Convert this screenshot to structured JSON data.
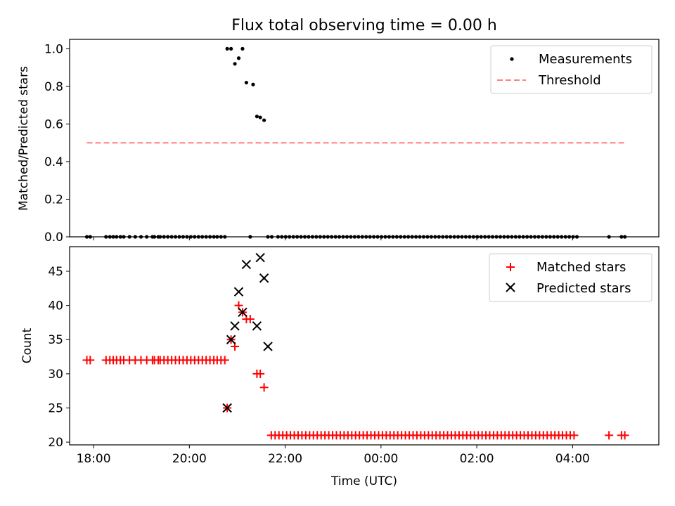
{
  "chart_data": [
    {
      "type": "scatter",
      "title": "Flux total observing time = 0.00 h",
      "xlabel": "",
      "ylabel": "Matched/Predicted stars",
      "xlim": [
        -0.5,
        11.8
      ],
      "ylim": [
        0,
        1.05
      ],
      "yticks": [
        0.0,
        0.2,
        0.4,
        0.6,
        0.8,
        1.0
      ],
      "ytick_labels": [
        "0.0",
        "0.2",
        "0.4",
        "0.6",
        "0.8",
        "1.0"
      ],
      "legend": {
        "location": "top-right",
        "entries": [
          "Measurements",
          "Threshold"
        ]
      },
      "series": [
        {
          "name": "Measurements",
          "marker": "dot",
          "color": "#000000",
          "x": [
            -0.14,
            -0.07,
            0.26,
            0.34,
            0.41,
            0.48,
            0.56,
            0.63,
            0.75,
            0.87,
            0.99,
            1.11,
            1.23,
            1.27,
            1.35,
            1.39,
            1.47,
            1.55,
            1.63,
            1.71,
            1.79,
            1.87,
            1.95,
            2.03,
            2.11,
            2.19,
            2.27,
            2.35,
            2.43,
            2.51,
            2.58,
            2.66,
            2.74,
            2.79,
            2.87,
            2.95,
            3.03,
            3.11,
            3.19,
            3.27,
            3.33,
            3.41,
            3.48,
            3.56,
            3.64,
            3.72,
            3.85,
            3.93,
            4.01,
            4.09,
            4.17,
            4.25,
            4.33,
            4.41,
            4.49,
            4.57,
            4.65,
            4.73,
            4.81,
            4.89,
            4.97,
            5.05,
            5.13,
            5.21,
            5.29,
            5.37,
            5.45,
            5.53,
            5.61,
            5.69,
            5.77,
            5.85,
            5.93,
            6.01,
            6.09,
            6.17,
            6.25,
            6.33,
            6.41,
            6.49,
            6.57,
            6.65,
            6.73,
            6.81,
            6.89,
            6.97,
            7.05,
            7.13,
            7.21,
            7.29,
            7.37,
            7.45,
            7.53,
            7.61,
            7.69,
            7.77,
            7.85,
            7.93,
            8.01,
            8.09,
            8.17,
            8.25,
            8.33,
            8.41,
            8.49,
            8.57,
            8.65,
            8.73,
            8.81,
            8.89,
            8.97,
            9.05,
            9.13,
            9.21,
            9.29,
            9.37,
            9.45,
            9.53,
            9.61,
            9.69,
            9.77,
            9.85,
            9.93,
            10.01,
            10.09,
            10.76,
            11.02,
            11.09
          ],
          "y": [
            0,
            0,
            0,
            0,
            0,
            0,
            0,
            0,
            0,
            0,
            0,
            0,
            0,
            0,
            0,
            0,
            0,
            0,
            0,
            0,
            0,
            0,
            0,
            0,
            0,
            0,
            0,
            0,
            0,
            0,
            0,
            0,
            0,
            1.0,
            1.0,
            0.92,
            0.95,
            1.0,
            0.82,
            0,
            0.81,
            0.64,
            0.635,
            0.62,
            0,
            0,
            0,
            0,
            0,
            0,
            0,
            0,
            0,
            0,
            0,
            0,
            0,
            0,
            0,
            0,
            0,
            0,
            0,
            0,
            0,
            0,
            0,
            0,
            0,
            0,
            0,
            0,
            0,
            0,
            0,
            0,
            0,
            0,
            0,
            0,
            0,
            0,
            0,
            0,
            0,
            0,
            0,
            0,
            0,
            0,
            0,
            0,
            0,
            0,
            0,
            0,
            0,
            0,
            0,
            0,
            0,
            0,
            0,
            0,
            0,
            0,
            0,
            0,
            0,
            0,
            0,
            0,
            0,
            0,
            0,
            0,
            0,
            0,
            0,
            0,
            0,
            0,
            0,
            0,
            0,
            0,
            0,
            0
          ]
        },
        {
          "name": "Threshold",
          "type": "line",
          "style": "dashed",
          "color": "#ff8080",
          "x": [
            -0.14,
            11.09
          ],
          "y": [
            0.5,
            0.5
          ]
        }
      ]
    },
    {
      "type": "scatter",
      "title": "",
      "xlabel": "Time (UTC)",
      "ylabel": "Count",
      "xlim": [
        -0.5,
        11.8
      ],
      "ylim": [
        19.6,
        48.6
      ],
      "yticks": [
        20,
        25,
        30,
        35,
        40,
        45
      ],
      "ytick_labels": [
        "20",
        "25",
        "30",
        "35",
        "40",
        "45"
      ],
      "xticks": [
        0,
        2,
        4,
        6,
        8,
        10
      ],
      "xtick_labels": [
        "18:00",
        "20:00",
        "22:00",
        "00:00",
        "02:00",
        "04:00"
      ],
      "legend": {
        "location": "top-right",
        "entries": [
          "Matched stars",
          "Predicted stars"
        ]
      },
      "series": [
        {
          "name": "Matched stars",
          "marker": "plus",
          "color": "#ff0000",
          "x": [
            -0.14,
            -0.07,
            0.26,
            0.34,
            0.41,
            0.48,
            0.56,
            0.63,
            0.75,
            0.87,
            0.99,
            1.11,
            1.23,
            1.27,
            1.35,
            1.39,
            1.47,
            1.55,
            1.63,
            1.71,
            1.79,
            1.87,
            1.95,
            2.03,
            2.11,
            2.19,
            2.27,
            2.35,
            2.43,
            2.51,
            2.58,
            2.66,
            2.74,
            2.79,
            2.87,
            2.95,
            3.03,
            3.11,
            3.19,
            3.27,
            3.41,
            3.48,
            3.56,
            3.71,
            3.79,
            3.87,
            3.95,
            4.03,
            4.11,
            4.19,
            4.27,
            4.35,
            4.43,
            4.51,
            4.59,
            4.67,
            4.75,
            4.83,
            4.91,
            4.99,
            5.07,
            5.15,
            5.23,
            5.31,
            5.39,
            5.47,
            5.55,
            5.63,
            5.71,
            5.79,
            5.87,
            5.95,
            6.03,
            6.11,
            6.19,
            6.27,
            6.35,
            6.43,
            6.51,
            6.59,
            6.67,
            6.75,
            6.83,
            6.91,
            6.99,
            7.07,
            7.15,
            7.23,
            7.31,
            7.39,
            7.47,
            7.55,
            7.63,
            7.71,
            7.79,
            7.87,
            7.95,
            8.03,
            8.11,
            8.19,
            8.27,
            8.35,
            8.43,
            8.51,
            8.59,
            8.67,
            8.75,
            8.83,
            8.91,
            8.99,
            9.07,
            9.15,
            9.23,
            9.31,
            9.39,
            9.47,
            9.55,
            9.63,
            9.71,
            9.79,
            9.87,
            9.95,
            10.03,
            10.76,
            11.02,
            11.09
          ],
          "y": [
            32,
            32,
            32,
            32,
            32,
            32,
            32,
            32,
            32,
            32,
            32,
            32,
            32,
            32,
            32,
            32,
            32,
            32,
            32,
            32,
            32,
            32,
            32,
            32,
            32,
            32,
            32,
            32,
            32,
            32,
            32,
            32,
            32,
            25,
            35,
            34,
            40,
            39,
            38,
            38,
            30,
            30,
            28,
            21,
            21,
            21,
            21,
            21,
            21,
            21,
            21,
            21,
            21,
            21,
            21,
            21,
            21,
            21,
            21,
            21,
            21,
            21,
            21,
            21,
            21,
            21,
            21,
            21,
            21,
            21,
            21,
            21,
            21,
            21,
            21,
            21,
            21,
            21,
            21,
            21,
            21,
            21,
            21,
            21,
            21,
            21,
            21,
            21,
            21,
            21,
            21,
            21,
            21,
            21,
            21,
            21,
            21,
            21,
            21,
            21,
            21,
            21,
            21,
            21,
            21,
            21,
            21,
            21,
            21,
            21,
            21,
            21,
            21,
            21,
            21,
            21,
            21,
            21,
            21,
            21,
            21,
            21,
            21,
            21,
            21,
            21
          ]
        },
        {
          "name": "Predicted stars",
          "marker": "x",
          "color": "#000000",
          "x": [
            2.79,
            2.87,
            2.95,
            3.03,
            3.11,
            3.19,
            3.41,
            3.48,
            3.56,
            3.64
          ],
          "y": [
            25,
            35,
            37,
            42,
            39,
            46,
            37,
            47,
            44,
            34
          ]
        }
      ]
    }
  ]
}
